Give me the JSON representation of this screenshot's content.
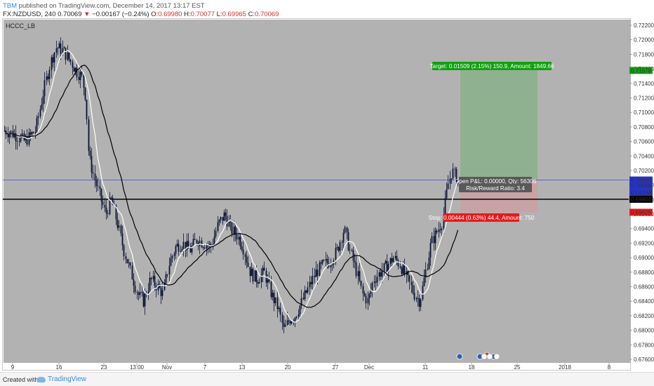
{
  "header": {
    "author": "TBM",
    "published_text": " published on TradingView.com, December 14, 2017 13:17 EST",
    "symbol": "FX:NZDUSD, 240",
    "last": "0.70069",
    "change_arrow": "▼",
    "change": "−0.00167 (−0.24%)",
    "open_key": "O:",
    "open_val": "0.69980",
    "high_key": "H:",
    "high_val": "0.70077",
    "low_key": "L:",
    "low_val": "0.69965",
    "close_key": "C:",
    "close_val": "0.70069"
  },
  "indicator_label": "HCCC_LB",
  "price_axis": {
    "ticks": [
      "0.72200",
      "0.72000",
      "0.71800",
      "0.71600",
      "0.71400",
      "0.71200",
      "0.71000",
      "0.70800",
      "0.70600",
      "0.70400",
      "0.70200",
      "0.70000",
      "0.69800",
      "0.69600",
      "0.69400",
      "0.69200",
      "0.69000",
      "0.68800",
      "0.68600",
      "0.68400",
      "0.68200",
      "0.68000",
      "0.67800",
      "0.67600"
    ],
    "labels": {
      "target": "0.71578",
      "current": "0.70069",
      "countdown": "03:42:55",
      "line": "0.69804",
      "stop": "0.69625"
    }
  },
  "time_axis": {
    "ticks": [
      "9",
      "16",
      "23",
      "13:00",
      "Nov",
      "7",
      "13",
      "20",
      "27",
      "Dec",
      "11",
      "18",
      "25",
      "2018",
      "8"
    ]
  },
  "position": {
    "target_label": "Target: 0.01509 (2.15%) 150.9, Amount: 1849.66",
    "pl_label": "Open P&L: 0.00000, Qty: 56306",
    "rr_label": "Risk/Reward Ratio: 3.4",
    "stop_label": "Stop: 0.00444 (0.63%) 44.4, Amount: 750"
  },
  "colors": {
    "plot_bg": "#b2b2b2",
    "candle": "#0b1233",
    "fast_ma": "#ffffff",
    "slow_ma": "#000000",
    "target_zone": "#8fb18f",
    "stop_zone": "#c9a3a3",
    "target_badge": "#11a011",
    "stop_badge": "#e8191b",
    "current_badge": "#2633c9",
    "hline_blue": "#3b4bd8"
  },
  "footer": {
    "created_with": "Created with",
    "brand": "TradingView"
  }
}
